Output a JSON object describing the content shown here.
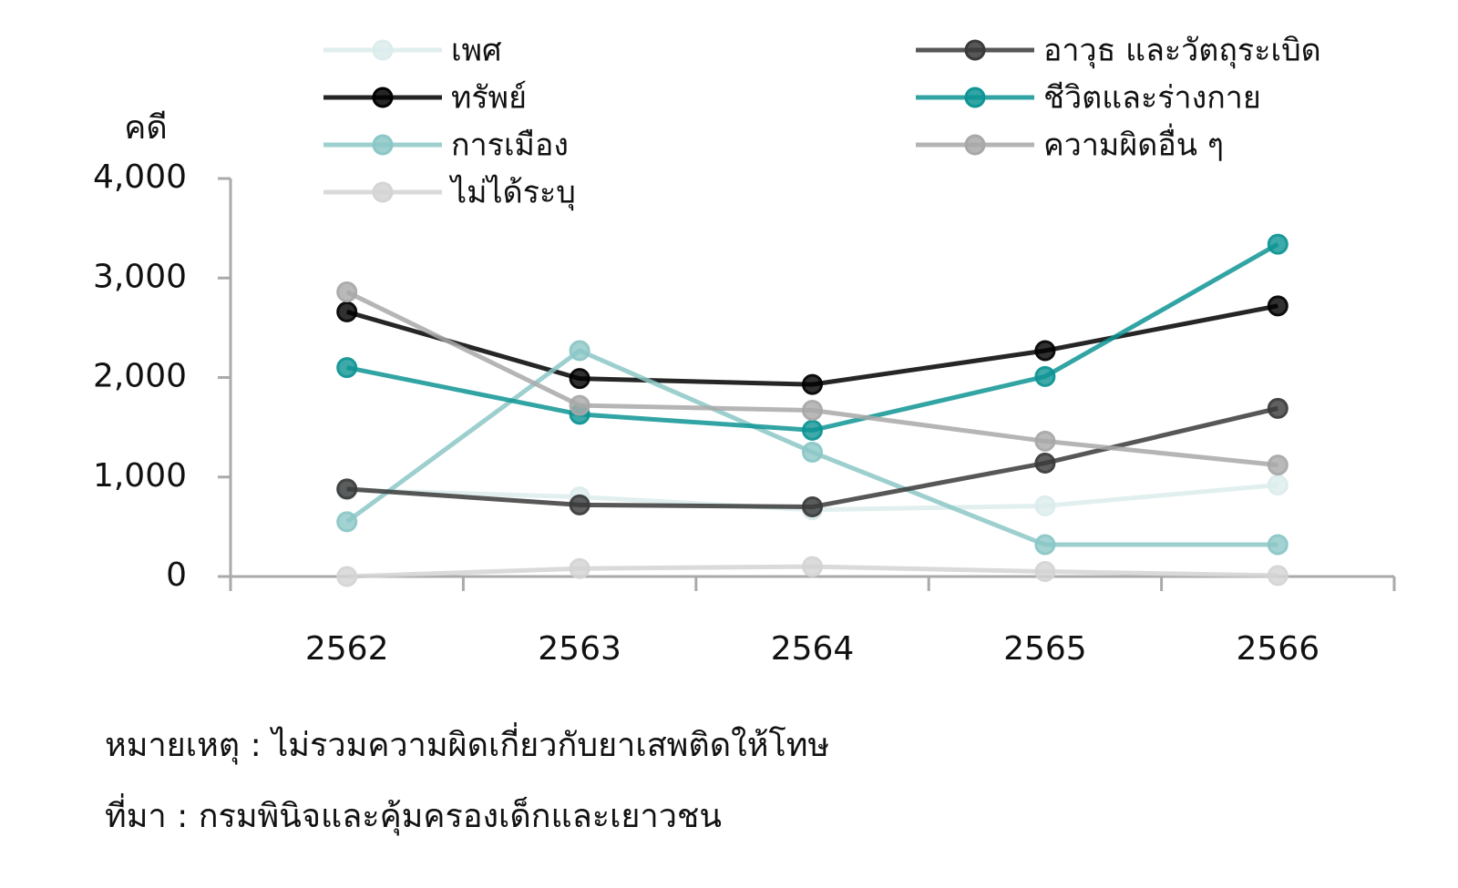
{
  "chart_data": {
    "type": "line",
    "y_label": "คดี",
    "categories": [
      "2562",
      "2563",
      "2564",
      "2565",
      "2566"
    ],
    "series": [
      {
        "name": "เพศ",
        "color": "#dcecec",
        "values": [
          870,
          800,
          670,
          710,
          920
        ]
      },
      {
        "name": "ทรัพย์",
        "color": "#000000",
        "values": [
          2660,
          1990,
          1930,
          2270,
          2720
        ]
      },
      {
        "name": "การเมือง",
        "color": "#8cc7c7",
        "values": [
          550,
          2270,
          1250,
          320,
          320
        ]
      },
      {
        "name": "ไม่ได้ระบุ",
        "color": "#d4d4d4",
        "values": [
          0,
          80,
          100,
          50,
          10
        ]
      },
      {
        "name": "อาวุธ และวัตถุระเบิด",
        "color": "#3a3a3a",
        "values": [
          880,
          720,
          700,
          1140,
          1690
        ]
      },
      {
        "name": "ชีวิตและร่างกาย",
        "color": "#0e9494",
        "values": [
          2100,
          1630,
          1470,
          2010,
          3340
        ]
      },
      {
        "name": "ความผิดอื่น ๆ",
        "color": "#a8a8a8",
        "values": [
          2860,
          1720,
          1670,
          1360,
          1120
        ]
      }
    ],
    "ylim": [
      0,
      4000
    ],
    "yticks": [
      0,
      {
        "value": 1000,
        "label": "1,000"
      },
      {
        "value": 2000,
        "label": "2,000"
      },
      {
        "value": 3000,
        "label": "3,000"
      },
      {
        "value": 4000,
        "label": "4,000"
      }
    ],
    "grid": false,
    "legend": "top",
    "notes": [
      "หมายเหตุ : ไม่รวมความผิดเกี่ยวกับยาเสพติดให้โทษ",
      "ที่มา : กรมพินิจและคุ้มครองเด็กและเยาวชน"
    ]
  }
}
